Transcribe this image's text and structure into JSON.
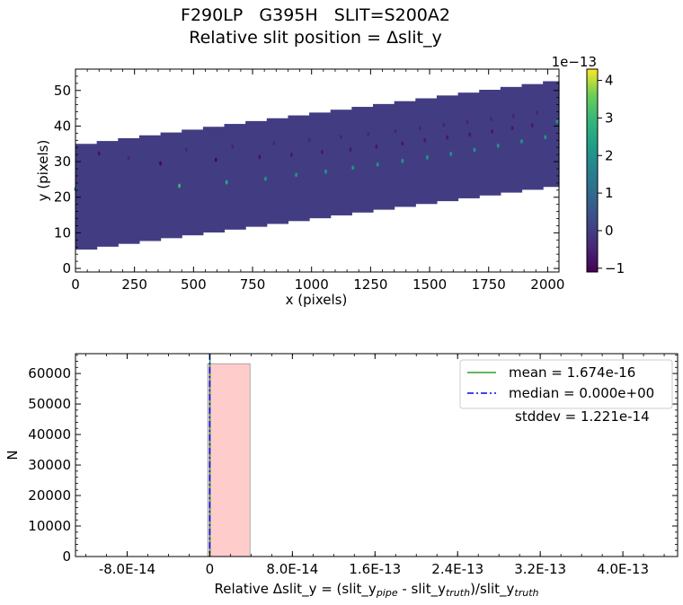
{
  "figure": {
    "title_line1": "F290LP   G395H   SLIT=S200A2",
    "title_line2": "Relative slit position = Δslit_y"
  },
  "chart_data": [
    {
      "type": "heatmap",
      "xlabel": "x (pixels)",
      "ylabel": "y (pixels)",
      "xlim": [
        0,
        2048
      ],
      "ylim": [
        -1,
        56
      ],
      "xticks": [
        0,
        250,
        500,
        750,
        1000,
        1250,
        1500,
        1750,
        2000
      ],
      "yticks": [
        0,
        10,
        20,
        30,
        40,
        50
      ],
      "background_value": 0,
      "colorbar": {
        "offset_label": "1e−13",
        "range": [
          -1.1,
          4.3
        ],
        "ticks": [
          -1,
          0,
          1,
          2,
          3,
          4
        ],
        "tick_labels": [
          "−1",
          "0",
          "1",
          "2",
          "3",
          "4"
        ],
        "colormap": "viridis"
      },
      "trace": {
        "x_start": 0,
        "x_end": 2048,
        "bottom_start": 5.3,
        "bottom_end": 23.5,
        "top_start": 35,
        "top_end": 53.2,
        "step_width": 90
      },
      "features": [
        {
          "x": 0,
          "y": 22.3,
          "value": 1.5
        },
        {
          "x": 100,
          "y": 32.3,
          "value": -0.8
        },
        {
          "x": 225,
          "y": 31,
          "value": -0.5
        },
        {
          "x": 360,
          "y": 29.5,
          "value": -1
        },
        {
          "x": 440,
          "y": 23.2,
          "value": 3
        },
        {
          "x": 470,
          "y": 33.4,
          "value": -0.5
        },
        {
          "x": 595,
          "y": 30.5,
          "value": -1
        },
        {
          "x": 640,
          "y": 24.2,
          "value": 2.5
        },
        {
          "x": 665,
          "y": 34.2,
          "value": -0.5
        },
        {
          "x": 780,
          "y": 31.3,
          "value": -0.8
        },
        {
          "x": 805,
          "y": 25.2,
          "value": 2
        },
        {
          "x": 840,
          "y": 35.1,
          "value": -0.5
        },
        {
          "x": 915,
          "y": 31.9,
          "value": -0.7
        },
        {
          "x": 935,
          "y": 26.3,
          "value": 2
        },
        {
          "x": 990,
          "y": 36.1,
          "value": -0.5
        },
        {
          "x": 1045,
          "y": 32.7,
          "value": -0.7
        },
        {
          "x": 1060,
          "y": 27.2,
          "value": 2
        },
        {
          "x": 1125,
          "y": 36.9,
          "value": -0.5
        },
        {
          "x": 1165,
          "y": 33.4,
          "value": -0.7
        },
        {
          "x": 1175,
          "y": 28.3,
          "value": 2
        },
        {
          "x": 1240,
          "y": 37.8,
          "value": -0.5
        },
        {
          "x": 1275,
          "y": 34.2,
          "value": -0.7
        },
        {
          "x": 1280,
          "y": 29.2,
          "value": 2
        },
        {
          "x": 1355,
          "y": 38.6,
          "value": -0.5
        },
        {
          "x": 1385,
          "y": 35.1,
          "value": -0.7
        },
        {
          "x": 1385,
          "y": 30.2,
          "value": 2
        },
        {
          "x": 1460,
          "y": 39.4,
          "value": -0.5
        },
        {
          "x": 1480,
          "y": 36,
          "value": -0.7
        },
        {
          "x": 1490,
          "y": 31.2,
          "value": 2
        },
        {
          "x": 1560,
          "y": 40.3,
          "value": -0.5
        },
        {
          "x": 1575,
          "y": 36.8,
          "value": -0.7
        },
        {
          "x": 1590,
          "y": 32.2,
          "value": 2
        },
        {
          "x": 1660,
          "y": 41.1,
          "value": -0.5
        },
        {
          "x": 1670,
          "y": 37.6,
          "value": -0.7
        },
        {
          "x": 1690,
          "y": 33.3,
          "value": 2
        },
        {
          "x": 1760,
          "y": 42,
          "value": -0.5
        },
        {
          "x": 1765,
          "y": 38.5,
          "value": -0.7
        },
        {
          "x": 1790,
          "y": 34.5,
          "value": 2
        },
        {
          "x": 1855,
          "y": 42.9,
          "value": -0.5
        },
        {
          "x": 1850,
          "y": 39.4,
          "value": -0.7
        },
        {
          "x": 1890,
          "y": 35.7,
          "value": 2
        },
        {
          "x": 1955,
          "y": 43.8,
          "value": -0.5
        },
        {
          "x": 1935,
          "y": 40.2,
          "value": -0.7
        },
        {
          "x": 1990,
          "y": 36.9,
          "value": 2
        },
        {
          "x": 2040,
          "y": 41.3,
          "value": 2
        }
      ]
    },
    {
      "type": "bar",
      "subtype": "histogram",
      "xlabel": "Relative Δslit_y = (slit_y",
      "xlabel_sub1": "pipe",
      "xlabel_mid": " - slit_y",
      "xlabel_sub2": "truth",
      "xlabel_end": ")/slit_y",
      "xlabel_sub3": "truth",
      "ylabel": "N",
      "xlim": [
        -1.3e-13,
        4.53e-13
      ],
      "ylim": [
        0,
        66500
      ],
      "xticks": [
        -8e-14,
        0,
        8e-14,
        1.6e-13,
        2.4e-13,
        3.2e-13,
        4e-13
      ],
      "xtick_labels": [
        "-8.0E-14",
        "0",
        "8.0E-14",
        "1.6E-13",
        "2.4E-13",
        "3.2E-13",
        "4.0E-13"
      ],
      "yticks": [
        0,
        10000,
        20000,
        30000,
        40000,
        50000,
        60000
      ],
      "bins": [
        {
          "x0": -2e-15,
          "x1": 3.9e-14,
          "count": 63200
        }
      ],
      "lines": [
        {
          "name": "mean = 1.674e-16",
          "x": 1.674e-16,
          "color": "#2ca02c",
          "style": "solid"
        },
        {
          "name": "median = 0.000e+00",
          "x": 0,
          "color": "#0000ff",
          "style": "dashdot"
        }
      ],
      "annotation": "stddev = 1.221e-14",
      "legend_position": "upper right"
    }
  ]
}
